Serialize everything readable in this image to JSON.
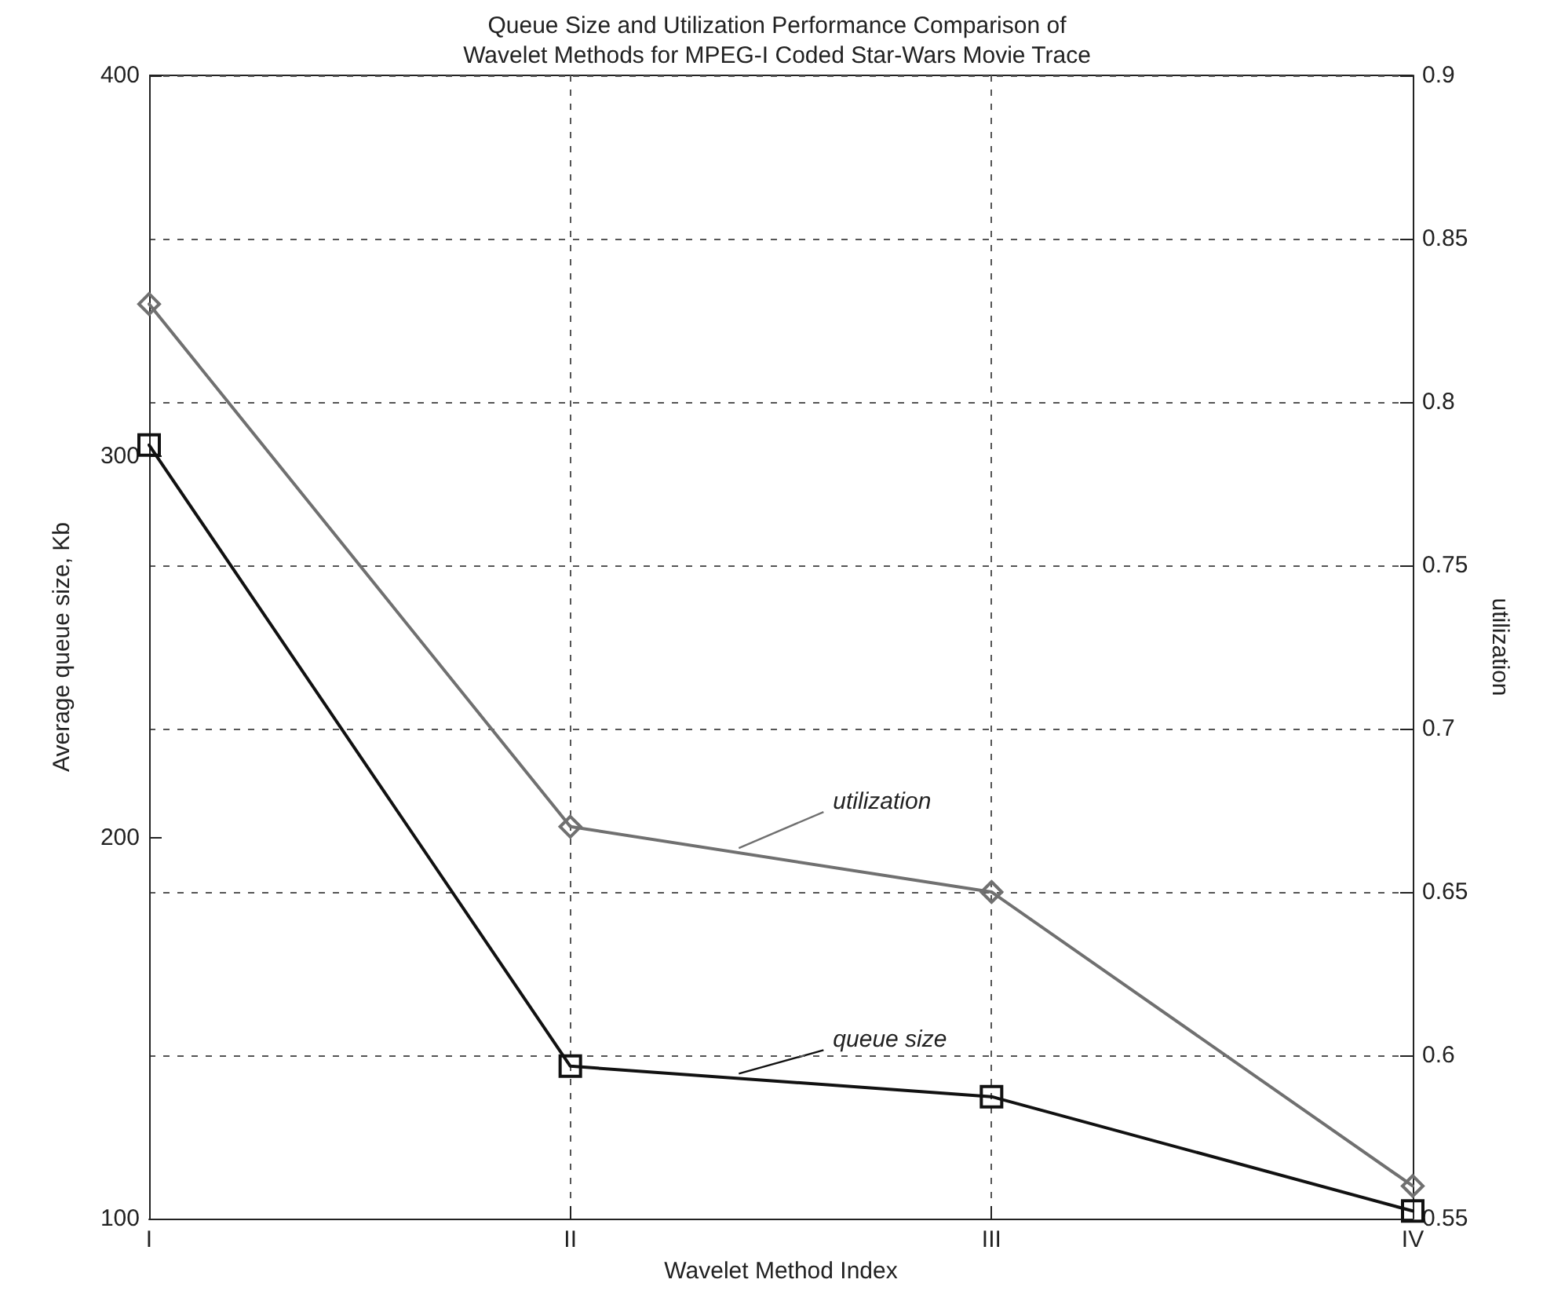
{
  "chart_data": {
    "type": "line",
    "title": "Queue Size and Utilization Performance Comparison of\nWavelet Methods for MPEG-I Coded Star-Wars Movie Trace",
    "xlabel": "Wavelet Method Index",
    "ylabel": "Average queue size, Kb",
    "y2label": "utilization",
    "categories": [
      "I",
      "II",
      "III",
      "IV"
    ],
    "series": [
      {
        "name": "utilization",
        "color": "#707070",
        "values": [
          0.83,
          0.67,
          0.65,
          0.56
        ],
        "axis": "y2",
        "marker": "diamond"
      },
      {
        "name": "queue size",
        "color": "#111111",
        "values": [
          303,
          140,
          132,
          102
        ],
        "marker": "square"
      }
    ],
    "ylim": [
      100,
      400
    ],
    "yticks": [
      100,
      200,
      300,
      400
    ],
    "y2lim": [
      0.55,
      0.9
    ],
    "y2ticks": [
      0.55,
      0.6,
      0.65,
      0.7,
      0.75,
      0.8,
      0.85,
      0.9
    ],
    "grid": true,
    "legend": false,
    "line_style": "solid"
  }
}
